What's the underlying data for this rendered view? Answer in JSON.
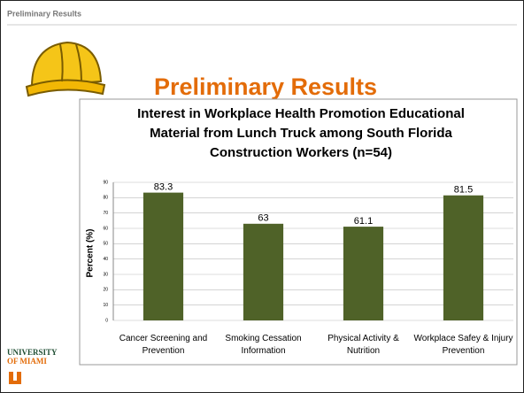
{
  "slide": {
    "header": "Preliminary Results",
    "title": "Preliminary Results",
    "logo": [
      "UNIVERSITY",
      "OF MIAMI"
    ]
  },
  "chart_data": {
    "type": "bar",
    "title": "Interest in Workplace Health Promotion Educational Material from Lunch Truck among South Florida Construction Workers (n=54)",
    "y_label": "Percent (%)",
    "categories": [
      "Cancer Screening and Prevention",
      "Smoking Cessation Information",
      "Physical Activity & Nutrition",
      "Workplace Safey & Injury Prevention"
    ],
    "values": [
      83.3,
      63,
      61.1,
      81.5
    ],
    "color": "#4f6228",
    "ylim": [
      0,
      90
    ],
    "yticks": [
      0,
      10,
      20,
      30,
      40,
      50,
      60,
      70,
      80,
      90
    ],
    "grid": true
  }
}
